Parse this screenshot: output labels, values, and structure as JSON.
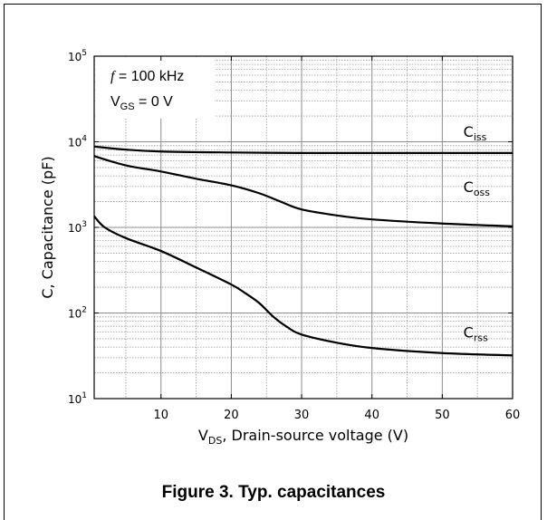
{
  "caption": "Figure 3. Typ. capacitances",
  "chart_data": {
    "type": "line",
    "title": "",
    "xlabel": {
      "main": "V",
      "sub": "DS",
      "rest": ", Drain-source voltage (V)"
    },
    "ylabel": "C, Capacitance (pF)",
    "xlim": [
      0.5,
      60
    ],
    "ylim": [
      10,
      100000
    ],
    "yscale": "log",
    "grid": true,
    "x_ticks": [
      10,
      20,
      30,
      40,
      50,
      60
    ],
    "y_ticks": [
      {
        "value": 10,
        "base": "10",
        "exp": "1"
      },
      {
        "value": 100,
        "base": "10",
        "exp": "2"
      },
      {
        "value": 1000,
        "base": "10",
        "exp": "3"
      },
      {
        "value": 10000,
        "base": "10",
        "exp": "4"
      },
      {
        "value": 100000,
        "base": "10",
        "exp": "5"
      }
    ],
    "conditions": {
      "freq": {
        "symbol": "f",
        "text": " = 100 kHz"
      },
      "vgs": {
        "main": "V",
        "sub": "GS",
        "rest": " = 0 V"
      }
    },
    "series": [
      {
        "name": "Ciss",
        "label_main": "C",
        "label_sub": "iss",
        "label_at": [
          53,
          11500
        ],
        "x": [
          0.5,
          5,
          10,
          20,
          30,
          40,
          50,
          60
        ],
        "y": [
          8800,
          8100,
          7700,
          7500,
          7400,
          7400,
          7400,
          7400
        ]
      },
      {
        "name": "Coss",
        "label_main": "C",
        "label_sub": "oss",
        "label_at": [
          53,
          2600
        ],
        "x": [
          0.5,
          5,
          10,
          15,
          20,
          24,
          27,
          30,
          35,
          40,
          50,
          60
        ],
        "y": [
          6800,
          5300,
          4500,
          3700,
          3100,
          2500,
          2000,
          1620,
          1380,
          1240,
          1110,
          1030
        ]
      },
      {
        "name": "Crss",
        "label_main": "C",
        "label_sub": "rss",
        "label_at": [
          53,
          52
        ],
        "x": [
          0.5,
          2,
          5,
          10,
          15,
          20,
          22,
          24,
          26,
          28,
          30,
          35,
          40,
          50,
          60
        ],
        "y": [
          1350,
          1000,
          750,
          530,
          340,
          215,
          170,
          130,
          90,
          68,
          56,
          45,
          39,
          34,
          32
        ]
      }
    ]
  }
}
